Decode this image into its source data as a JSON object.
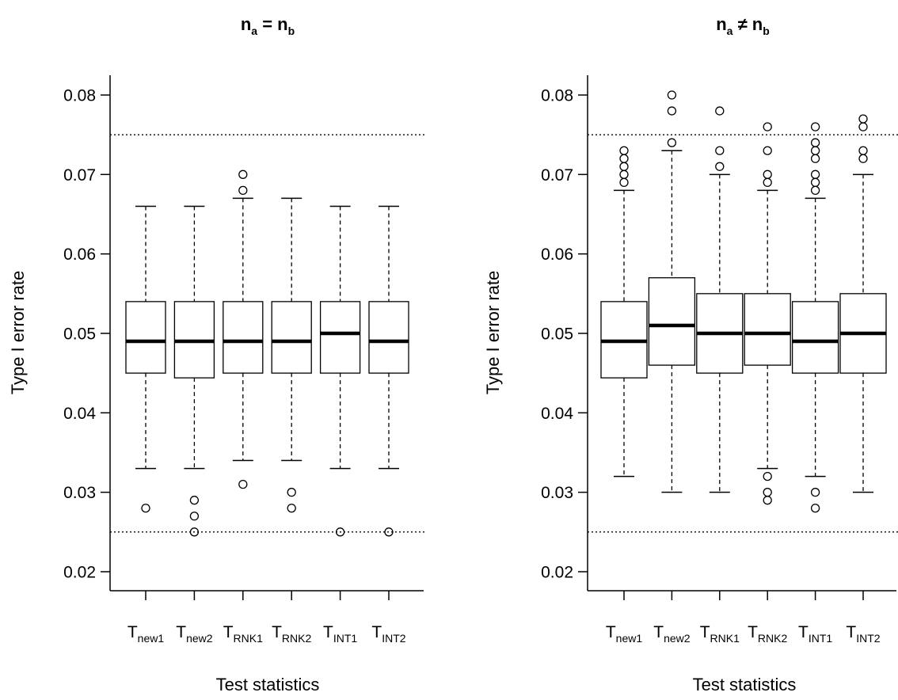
{
  "chart_data": [
    {
      "type": "boxplot",
      "title": {
        "base": "n",
        "lhs_sub": "a",
        "op": "=",
        "rhs_sub": "b"
      },
      "xlabel": "Test statistics",
      "ylabel": "Type I error rate",
      "ylim": [
        0.02,
        0.08
      ],
      "yticks": [
        "0.02",
        "0.03",
        "0.04",
        "0.05",
        "0.06",
        "0.07",
        "0.08"
      ],
      "reference_lines": [
        0.025,
        0.075
      ],
      "categories": [
        {
          "base": "T",
          "sub": "new1"
        },
        {
          "base": "T",
          "sub": "new2"
        },
        {
          "base": "T",
          "sub": "RNK1"
        },
        {
          "base": "T",
          "sub": "RNK2"
        },
        {
          "base": "T",
          "sub": "INT1"
        },
        {
          "base": "T",
          "sub": "INT2"
        }
      ],
      "boxes": [
        {
          "whisker_low": 0.033,
          "q1": 0.045,
          "median": 0.049,
          "q3": 0.054,
          "whisker_high": 0.066,
          "outliers": [
            0.028
          ]
        },
        {
          "whisker_low": 0.033,
          "q1": 0.0444,
          "median": 0.049,
          "q3": 0.054,
          "whisker_high": 0.066,
          "outliers": [
            0.025,
            0.027,
            0.029
          ]
        },
        {
          "whisker_low": 0.034,
          "q1": 0.045,
          "median": 0.049,
          "q3": 0.054,
          "whisker_high": 0.067,
          "outliers": [
            0.031,
            0.068,
            0.07
          ]
        },
        {
          "whisker_low": 0.034,
          "q1": 0.045,
          "median": 0.049,
          "q3": 0.054,
          "whisker_high": 0.067,
          "outliers": [
            0.028,
            0.03
          ]
        },
        {
          "whisker_low": 0.033,
          "q1": 0.045,
          "median": 0.05,
          "q3": 0.054,
          "whisker_high": 0.066,
          "outliers": [
            0.025
          ]
        },
        {
          "whisker_low": 0.033,
          "q1": 0.045,
          "median": 0.049,
          "q3": 0.054,
          "whisker_high": 0.066,
          "outliers": [
            0.025
          ]
        }
      ]
    },
    {
      "type": "boxplot",
      "title": {
        "base": "n",
        "lhs_sub": "a",
        "op": "≠",
        "rhs_sub": "b"
      },
      "xlabel": "Test statistics",
      "ylabel": "Type I error rate",
      "ylim": [
        0.02,
        0.08
      ],
      "yticks": [
        "0.02",
        "0.03",
        "0.04",
        "0.05",
        "0.06",
        "0.07",
        "0.08"
      ],
      "reference_lines": [
        0.025,
        0.075
      ],
      "categories": [
        {
          "base": "T",
          "sub": "new1"
        },
        {
          "base": "T",
          "sub": "new2"
        },
        {
          "base": "T",
          "sub": "RNK1"
        },
        {
          "base": "T",
          "sub": "RNK2"
        },
        {
          "base": "T",
          "sub": "INT1"
        },
        {
          "base": "T",
          "sub": "INT2"
        }
      ],
      "boxes": [
        {
          "whisker_low": 0.032,
          "q1": 0.0444,
          "median": 0.049,
          "q3": 0.054,
          "whisker_high": 0.068,
          "outliers": [
            0.069,
            0.07,
            0.071,
            0.072,
            0.073
          ]
        },
        {
          "whisker_low": 0.03,
          "q1": 0.046,
          "median": 0.051,
          "q3": 0.057,
          "whisker_high": 0.073,
          "outliers": [
            0.074,
            0.078,
            0.08
          ]
        },
        {
          "whisker_low": 0.03,
          "q1": 0.045,
          "median": 0.05,
          "q3": 0.055,
          "whisker_high": 0.07,
          "outliers": [
            0.071,
            0.073,
            0.078
          ]
        },
        {
          "whisker_low": 0.033,
          "q1": 0.046,
          "median": 0.05,
          "q3": 0.055,
          "whisker_high": 0.068,
          "outliers": [
            0.029,
            0.03,
            0.032,
            0.069,
            0.07,
            0.073,
            0.076
          ]
        },
        {
          "whisker_low": 0.032,
          "q1": 0.045,
          "median": 0.049,
          "q3": 0.054,
          "whisker_high": 0.067,
          "outliers": [
            0.028,
            0.03,
            0.068,
            0.069,
            0.07,
            0.072,
            0.073,
            0.074,
            0.076
          ]
        },
        {
          "whisker_low": 0.03,
          "q1": 0.045,
          "median": 0.05,
          "q3": 0.055,
          "whisker_high": 0.07,
          "outliers": [
            0.072,
            0.073,
            0.076,
            0.077
          ]
        }
      ]
    }
  ]
}
